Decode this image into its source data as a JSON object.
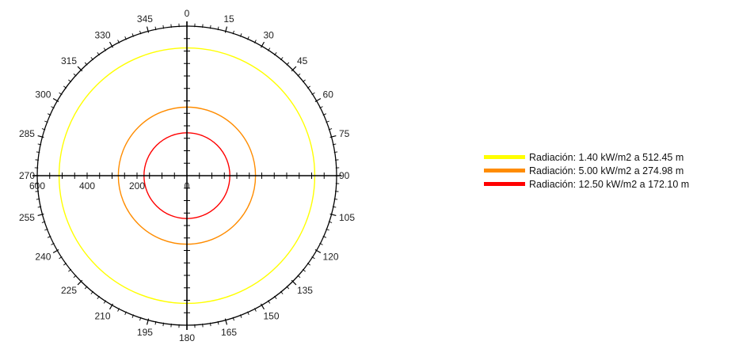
{
  "chart_data": {
    "type": "polar",
    "title": "",
    "angle_unit": "degrees",
    "angle_ticks": [
      0,
      15,
      30,
      45,
      60,
      75,
      90,
      105,
      120,
      135,
      150,
      165,
      180,
      195,
      210,
      225,
      240,
      255,
      270,
      285,
      300,
      315,
      330,
      345
    ],
    "angle_tick_labels": [
      "0",
      "15",
      "30",
      "45",
      "60",
      "75",
      "90",
      "105",
      "120",
      "135",
      "150",
      "165",
      "180",
      "195",
      "210",
      "225",
      "240",
      "255",
      "270",
      "285",
      "300",
      "315",
      "330",
      "345"
    ],
    "radial_range": [
      0,
      600
    ],
    "radial_tick_labels": [
      "600",
      "400",
      "200",
      "0"
    ],
    "radial_tick_values": [
      600,
      400,
      200,
      0
    ],
    "grid": false,
    "legend_position": "right",
    "series": [
      {
        "name": "Radiación: 1.40 kW/m2 a 512.45 m",
        "radius": 512.45,
        "color": "#ffff00"
      },
      {
        "name": "Radiación: 5.00 kW/m2 a 274.98 m",
        "radius": 274.98,
        "color": "#ff8c00"
      },
      {
        "name": "Radiación: 12.50 kW/m2 a 172.10 m",
        "radius": 172.1,
        "color": "#ff0000"
      }
    ]
  }
}
